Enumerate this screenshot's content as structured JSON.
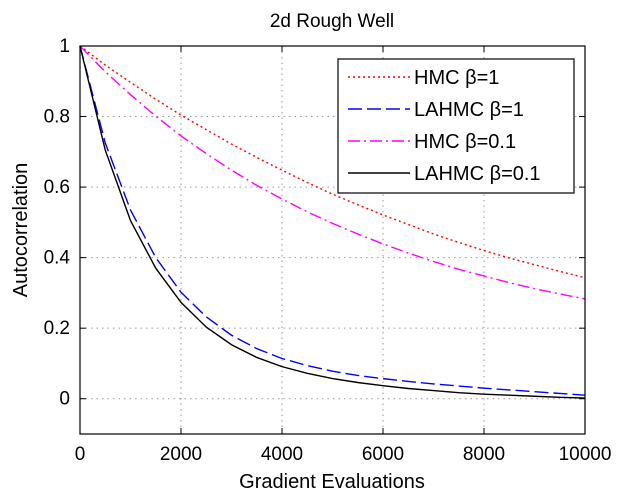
{
  "chart_data": {
    "type": "line",
    "title": "2d Rough Well",
    "xlabel": "Gradient Evaluations",
    "ylabel": "Autocorrelation",
    "xlim": [
      0,
      10000
    ],
    "ylim": [
      -0.1,
      1
    ],
    "xticks": [
      0,
      2000,
      4000,
      6000,
      8000,
      10000
    ],
    "yticks": [
      0,
      0.2,
      0.4,
      0.6,
      0.8,
      1
    ],
    "xtick_labels": [
      "0",
      "2000",
      "4000",
      "6000",
      "8000",
      "10000"
    ],
    "ytick_labels": [
      "0",
      "0.2",
      "0.4",
      "0.6",
      "0.8",
      "1"
    ],
    "grid": true,
    "legend_position": "top-right",
    "x": [
      0,
      500,
      1000,
      1500,
      2000,
      2500,
      3000,
      3500,
      4000,
      4500,
      5000,
      5500,
      6000,
      6500,
      7000,
      7500,
      8000,
      8500,
      9000,
      9500,
      10000
    ],
    "series": [
      {
        "name": "HMC β=1",
        "color": "#ff0000",
        "dash": "dotted",
        "values": [
          1.0,
          0.946,
          0.897,
          0.849,
          0.804,
          0.763,
          0.722,
          0.684,
          0.648,
          0.613,
          0.58,
          0.55,
          0.521,
          0.494,
          0.467,
          0.443,
          0.42,
          0.399,
          0.38,
          0.361,
          0.343
        ]
      },
      {
        "name": "LAHMC β=1",
        "color": "#0000ff",
        "dash": "dashed",
        "values": [
          1.0,
          0.725,
          0.535,
          0.4,
          0.302,
          0.232,
          0.18,
          0.142,
          0.114,
          0.094,
          0.078,
          0.066,
          0.057,
          0.049,
          0.042,
          0.036,
          0.03,
          0.025,
          0.02,
          0.015,
          0.01
        ]
      },
      {
        "name": "HMC β=0.1",
        "color": "#ff00ff",
        "dash": "dashdot",
        "values": [
          1.0,
          0.927,
          0.862,
          0.801,
          0.745,
          0.695,
          0.648,
          0.605,
          0.566,
          0.53,
          0.497,
          0.467,
          0.439,
          0.413,
          0.389,
          0.367,
          0.348,
          0.329,
          0.312,
          0.297,
          0.283
        ]
      },
      {
        "name": "LAHMC β=0.1",
        "color": "#000000",
        "dash": "solid",
        "values": [
          1.0,
          0.705,
          0.505,
          0.37,
          0.273,
          0.203,
          0.153,
          0.117,
          0.091,
          0.072,
          0.057,
          0.046,
          0.037,
          0.029,
          0.023,
          0.017,
          0.013,
          0.01,
          0.007,
          0.004,
          0.002
        ]
      }
    ]
  }
}
